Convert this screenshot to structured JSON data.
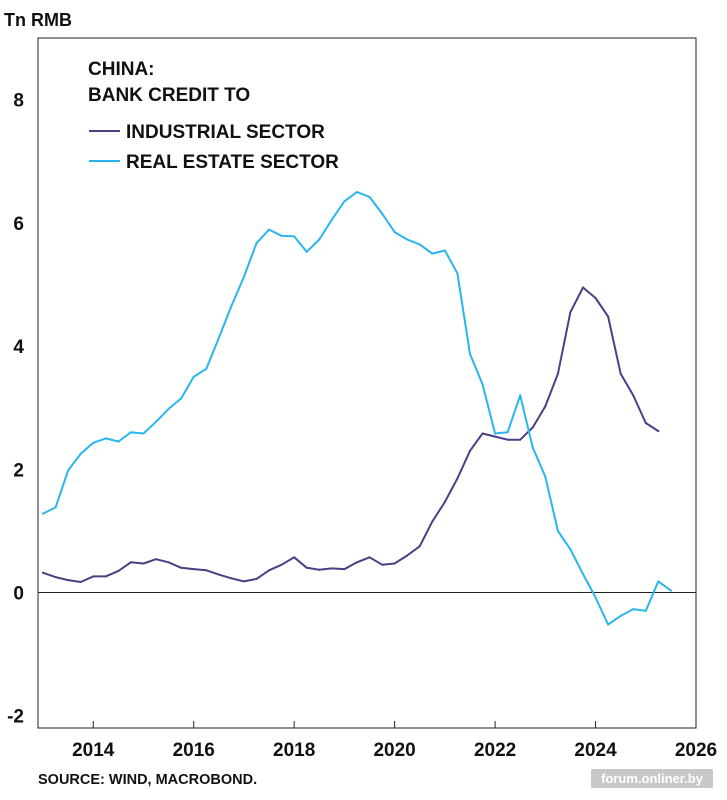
{
  "chart_data": {
    "type": "line",
    "title": "CHINA:",
    "subtitle": "BANK CREDIT TO",
    "ylabel": "Tn RMB",
    "xlabel": "",
    "xlim": [
      2012.9,
      2026.0
    ],
    "ylim": [
      -2.2,
      9.0
    ],
    "x_ticks": [
      2014,
      2016,
      2018,
      2020,
      2022,
      2024,
      2026
    ],
    "x_tick_labels": [
      "2014",
      "2016",
      "2018",
      "2020",
      "2022",
      "2024",
      "2026"
    ],
    "y_ticks": [
      -2,
      0,
      2,
      4,
      6,
      8
    ],
    "y_tick_labels": [
      "-2",
      "0",
      "2",
      "4",
      "6",
      "8"
    ],
    "legend_position": "top-left",
    "grid": false,
    "zero_line": true,
    "series": [
      {
        "name": "INDUSTRIAL SECTOR",
        "color": "#4b3f86",
        "x": [
          2013.0,
          2013.25,
          2013.5,
          2013.75,
          2014.0,
          2014.25,
          2014.5,
          2014.75,
          2015.0,
          2015.25,
          2015.5,
          2015.75,
          2016.0,
          2016.25,
          2016.5,
          2016.75,
          2017.0,
          2017.25,
          2017.5,
          2017.75,
          2018.0,
          2018.25,
          2018.5,
          2018.75,
          2019.0,
          2019.25,
          2019.5,
          2019.75,
          2020.0,
          2020.25,
          2020.5,
          2020.75,
          2021.0,
          2021.25,
          2021.5,
          2021.75,
          2022.0,
          2022.25,
          2022.5,
          2022.75,
          2023.0,
          2023.25,
          2023.5,
          2023.75,
          2024.0,
          2024.25,
          2024.5,
          2024.75,
          2025.0,
          2025.25
        ],
        "values": [
          0.32,
          0.25,
          0.2,
          0.17,
          0.26,
          0.26,
          0.35,
          0.49,
          0.47,
          0.54,
          0.49,
          0.4,
          0.38,
          0.36,
          0.29,
          0.23,
          0.18,
          0.22,
          0.36,
          0.45,
          0.57,
          0.4,
          0.37,
          0.39,
          0.38,
          0.49,
          0.57,
          0.45,
          0.47,
          0.6,
          0.75,
          1.15,
          1.47,
          1.85,
          2.3,
          2.58,
          2.53,
          2.48,
          2.48,
          2.68,
          3.02,
          3.55,
          4.55,
          4.95,
          4.78,
          4.48,
          3.55,
          3.2,
          2.75,
          2.62
        ]
      },
      {
        "name": "REAL ESTATE SECTOR",
        "color": "#29b6ec",
        "x": [
          2013.0,
          2013.25,
          2013.5,
          2013.75,
          2014.0,
          2014.25,
          2014.5,
          2014.75,
          2015.0,
          2015.25,
          2015.5,
          2015.75,
          2016.0,
          2016.25,
          2016.5,
          2016.75,
          2017.0,
          2017.25,
          2017.5,
          2017.75,
          2018.0,
          2018.25,
          2018.5,
          2018.75,
          2019.0,
          2019.25,
          2019.5,
          2019.75,
          2020.0,
          2020.25,
          2020.5,
          2020.75,
          2021.0,
          2021.25,
          2021.5,
          2021.75,
          2022.0,
          2022.25,
          2022.5,
          2022.75,
          2023.0,
          2023.25,
          2023.5,
          2023.75,
          2024.0,
          2024.25,
          2024.5,
          2024.75,
          2025.0,
          2025.25,
          2025.5
        ],
        "values": [
          1.28,
          1.38,
          1.98,
          2.25,
          2.43,
          2.5,
          2.45,
          2.6,
          2.58,
          2.77,
          2.98,
          3.15,
          3.5,
          3.63,
          4.13,
          4.65,
          5.12,
          5.67,
          5.89,
          5.79,
          5.78,
          5.53,
          5.73,
          6.05,
          6.35,
          6.5,
          6.42,
          6.15,
          5.85,
          5.73,
          5.65,
          5.5,
          5.55,
          5.18,
          3.87,
          3.38,
          2.58,
          2.6,
          3.2,
          2.35,
          1.88,
          1.0,
          0.7,
          0.3,
          -0.08,
          -0.52,
          -0.38,
          -0.27,
          -0.3,
          0.18,
          0.03
        ]
      }
    ]
  },
  "source": "SOURCE: WIND, MACROBOND.",
  "watermark": "forum.onliner.by"
}
